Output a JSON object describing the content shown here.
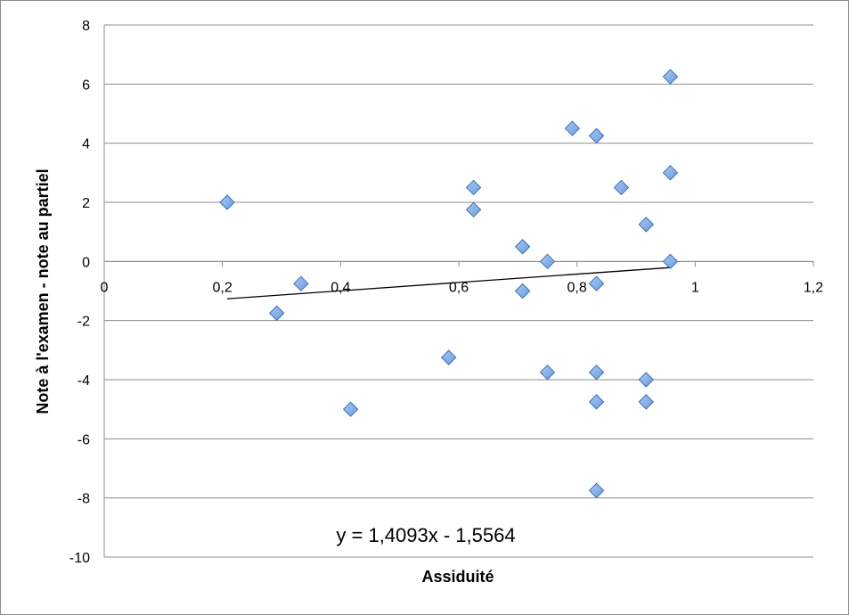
{
  "chart_data": {
    "type": "scatter",
    "xlabel": "Assiduité",
    "ylabel": "Note à l'examen - note au partiel",
    "xlim": [
      0,
      1.2
    ],
    "ylim": [
      -10,
      8
    ],
    "x_ticks": [
      "0",
      "0,2",
      "0,4",
      "0,6",
      "0,8",
      "1",
      "1,2"
    ],
    "y_ticks": [
      "8",
      "6",
      "4",
      "2",
      "0",
      "-2",
      "-4",
      "-6",
      "-8",
      "-10"
    ],
    "grid": "horizontal",
    "marker": "diamond",
    "marker_color": "#6a9ce0",
    "trendline": {
      "slope": 1.4093,
      "intercept": -1.5564,
      "x_range": [
        0.208,
        0.958
      ],
      "label": "y = 1,4093x - 1,5564",
      "color": "#000000"
    },
    "points": [
      {
        "x": 0.208,
        "y": 2.0
      },
      {
        "x": 0.292,
        "y": -1.75
      },
      {
        "x": 0.333,
        "y": -0.75
      },
      {
        "x": 0.417,
        "y": -5.0
      },
      {
        "x": 0.583,
        "y": -3.25
      },
      {
        "x": 0.625,
        "y": 2.5
      },
      {
        "x": 0.625,
        "y": 1.75
      },
      {
        "x": 0.708,
        "y": 0.5
      },
      {
        "x": 0.708,
        "y": -1.0
      },
      {
        "x": 0.75,
        "y": 0.0
      },
      {
        "x": 0.75,
        "y": -3.75
      },
      {
        "x": 0.792,
        "y": 4.5
      },
      {
        "x": 0.833,
        "y": 4.25
      },
      {
        "x": 0.833,
        "y": -0.75
      },
      {
        "x": 0.833,
        "y": -3.75
      },
      {
        "x": 0.833,
        "y": -4.75
      },
      {
        "x": 0.833,
        "y": -7.75
      },
      {
        "x": 0.875,
        "y": 2.5
      },
      {
        "x": 0.917,
        "y": 1.25
      },
      {
        "x": 0.917,
        "y": -4.0
      },
      {
        "x": 0.917,
        "y": -4.75
      },
      {
        "x": 0.958,
        "y": 6.25
      },
      {
        "x": 0.958,
        "y": 3.0
      },
      {
        "x": 0.958,
        "y": 0.0
      }
    ]
  }
}
